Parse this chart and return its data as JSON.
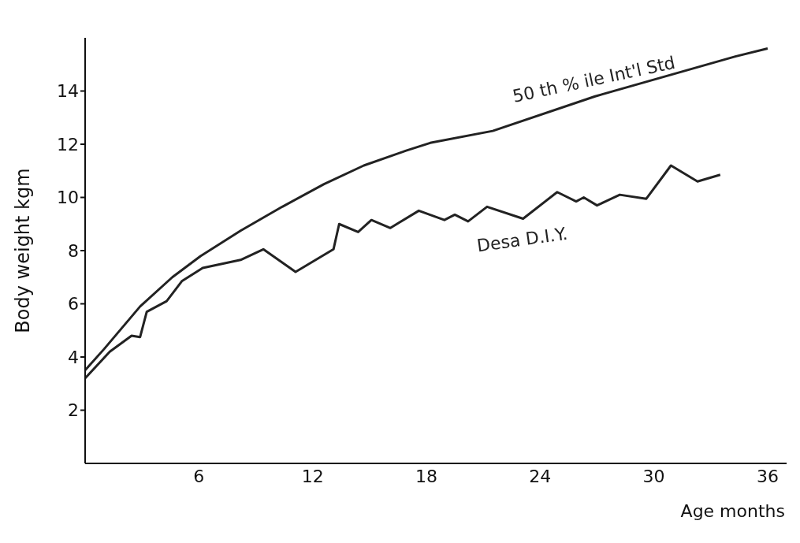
{
  "chart_data": {
    "type": "line",
    "xlabel": "Age months",
    "ylabel": "Body weight kgm",
    "xlim": [
      0,
      37
    ],
    "xticks": [
      6,
      12,
      18,
      24,
      30,
      36
    ],
    "ylim": [
      0,
      16
    ],
    "yticks": [
      2,
      4,
      6,
      8,
      10,
      12,
      14
    ],
    "marker": "none",
    "line_style": "solid",
    "series": [
      {
        "name": "50 th % ile Int'l Std",
        "color": "#222222",
        "x": [
          0,
          1,
          2.9,
          4.6,
          6.1,
          8.2,
          10.4,
          12.6,
          14.7,
          16.9,
          18.2,
          21.5,
          26.9,
          34.3,
          36
        ],
        "values": [
          3.5,
          4.3,
          5.9,
          7.0,
          7.8,
          8.75,
          9.65,
          10.5,
          11.2,
          11.75,
          12.05,
          12.5,
          13.8,
          15.3,
          15.6
        ]
      },
      {
        "name": "Desa D.I.Y.",
        "color": "#222222",
        "x": [
          0,
          1.3,
          2.45,
          2.9,
          3.25,
          4.3,
          5.1,
          6.2,
          8.2,
          9.4,
          11.1,
          13.1,
          13.4,
          14.4,
          15.1,
          16.1,
          17.6,
          18.95,
          19.5,
          20.2,
          21.2,
          23.1,
          24.9,
          25.9,
          26.3,
          27.0,
          28.2,
          29.6,
          30.9,
          32.3,
          33.5
        ],
        "values": [
          3.2,
          4.2,
          4.8,
          4.75,
          5.7,
          6.1,
          6.85,
          7.35,
          7.65,
          8.05,
          7.2,
          8.05,
          9.0,
          8.7,
          9.15,
          8.85,
          9.5,
          9.15,
          9.35,
          9.1,
          9.65,
          9.2,
          10.2,
          9.85,
          10.0,
          9.7,
          10.1,
          9.95,
          11.2,
          10.6,
          10.85
        ]
      }
    ]
  }
}
